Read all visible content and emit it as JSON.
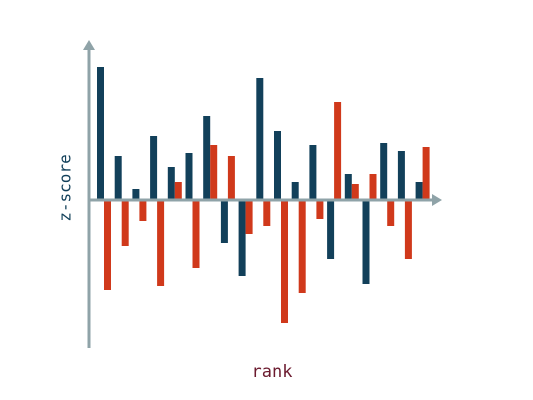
{
  "chart_data": {
    "type": "bar",
    "x_label": "rank",
    "y_label": "z-score",
    "categories": [
      null,
      null,
      null,
      null,
      null,
      null,
      null,
      null,
      null,
      null,
      null,
      null,
      null,
      null,
      null,
      null,
      null,
      null,
      null
    ],
    "series": [
      {
        "color": "#12405a",
        "values": [
          2.66,
          0.88,
          0.22,
          1.28,
          0.66,
          0.94,
          1.68,
          -0.86,
          -1.52,
          2.44,
          1.38,
          0.36,
          1.1,
          -1.18,
          0.52,
          -1.68,
          1.14,
          0.98,
          0.36
        ]
      },
      {
        "color": "#d0391b",
        "values": [
          -1.8,
          -0.92,
          -0.42,
          -1.72,
          0.36,
          -1.36,
          1.1,
          0.88,
          -0.68,
          -0.52,
          -2.46,
          -1.86,
          -0.38,
          1.96,
          0.32,
          0.52,
          -0.52,
          -1.18,
          1.06
        ]
      }
    ],
    "ylim": [
      -2.96,
      3.16
    ]
  }
}
